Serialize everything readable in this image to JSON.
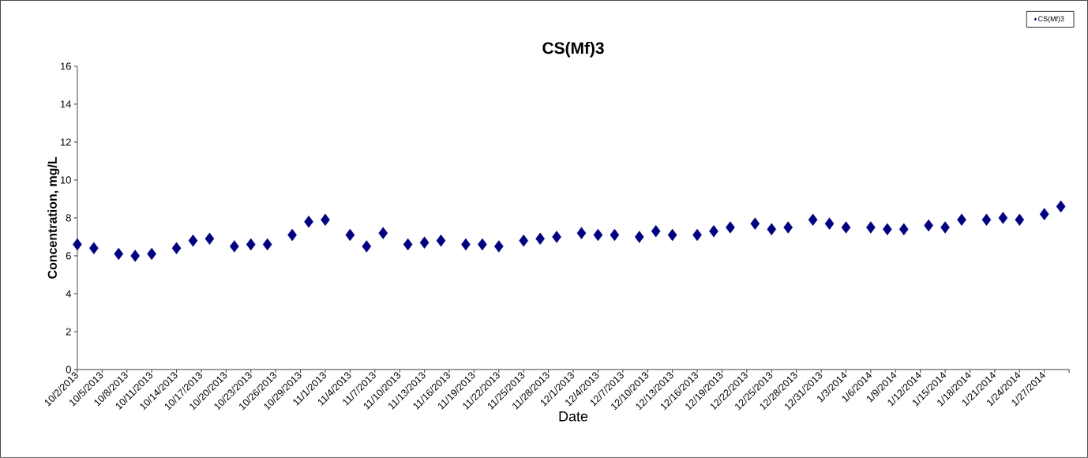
{
  "chart_data": {
    "type": "scatter",
    "title": "CS(Mf)3",
    "xlabel": "Date",
    "ylabel": "Concentration, mg/L",
    "x": [
      "2013-10-02",
      "2013-10-04",
      "2013-10-07",
      "2013-10-09",
      "2013-10-11",
      "2013-10-14",
      "2013-10-16",
      "2013-10-18",
      "2013-10-21",
      "2013-10-23",
      "2013-10-25",
      "2013-10-28",
      "2013-10-30",
      "2013-11-01",
      "2013-11-04",
      "2013-11-06",
      "2013-11-08",
      "2013-11-11",
      "2013-11-13",
      "2013-11-15",
      "2013-11-18",
      "2013-11-20",
      "2013-11-22",
      "2013-11-25",
      "2013-11-27",
      "2013-11-29",
      "2013-12-02",
      "2013-12-04",
      "2013-12-06",
      "2013-12-09",
      "2013-12-11",
      "2013-12-13",
      "2013-12-16",
      "2013-12-18",
      "2013-12-20",
      "2013-12-23",
      "2013-12-25",
      "2013-12-27",
      "2013-12-30",
      "2014-01-01",
      "2014-01-03",
      "2014-01-06",
      "2014-01-08",
      "2014-01-10",
      "2014-01-13",
      "2014-01-15",
      "2014-01-17",
      "2014-01-20",
      "2014-01-22",
      "2014-01-24",
      "2014-01-27",
      "2014-01-29"
    ],
    "series": [
      {
        "name": "CS(Mf)3",
        "color": "#000080",
        "values": [
          6.6,
          6.4,
          6.1,
          6.0,
          6.1,
          6.4,
          6.8,
          6.9,
          6.5,
          6.6,
          6.6,
          7.1,
          7.8,
          7.9,
          7.1,
          6.5,
          7.2,
          6.6,
          6.7,
          6.8,
          6.6,
          6.6,
          6.5,
          6.8,
          6.9,
          7.0,
          7.2,
          7.1,
          7.1,
          7.0,
          7.3,
          7.1,
          7.1,
          7.3,
          7.5,
          7.7,
          7.4,
          7.5,
          7.9,
          7.7,
          7.5,
          7.5,
          7.4,
          7.4,
          7.6,
          7.5,
          7.9,
          7.9,
          8.0,
          7.9,
          8.2,
          8.6
        ]
      }
    ],
    "xlim": [
      "2013-10-02",
      "2014-01-30"
    ],
    "xticks": [
      {
        "value": "2013-10-02",
        "label": "10/2/2013"
      },
      {
        "value": "2013-10-05",
        "label": "10/5/2013"
      },
      {
        "value": "2013-10-08",
        "label": "10/8/2013"
      },
      {
        "value": "2013-10-11",
        "label": "10/11/2013"
      },
      {
        "value": "2013-10-14",
        "label": "10/14/2013"
      },
      {
        "value": "2013-10-17",
        "label": "10/17/2013"
      },
      {
        "value": "2013-10-20",
        "label": "10/20/2013"
      },
      {
        "value": "2013-10-23",
        "label": "10/23/2013"
      },
      {
        "value": "2013-10-26",
        "label": "10/26/2013"
      },
      {
        "value": "2013-10-29",
        "label": "10/29/2013"
      },
      {
        "value": "2013-11-01",
        "label": "11/1/2013"
      },
      {
        "value": "2013-11-04",
        "label": "11/4/2013"
      },
      {
        "value": "2013-11-07",
        "label": "11/7/2013"
      },
      {
        "value": "2013-11-10",
        "label": "11/10/2013"
      },
      {
        "value": "2013-11-13",
        "label": "11/13/2013"
      },
      {
        "value": "2013-11-16",
        "label": "11/16/2013"
      },
      {
        "value": "2013-11-19",
        "label": "11/19/2013"
      },
      {
        "value": "2013-11-22",
        "label": "11/22/2013"
      },
      {
        "value": "2013-11-25",
        "label": "11/25/2013"
      },
      {
        "value": "2013-11-28",
        "label": "11/28/2013"
      },
      {
        "value": "2013-12-01",
        "label": "12/1/2013"
      },
      {
        "value": "2013-12-04",
        "label": "12/4/2013"
      },
      {
        "value": "2013-12-07",
        "label": "12/7/2013"
      },
      {
        "value": "2013-12-10",
        "label": "12/10/2013"
      },
      {
        "value": "2013-12-13",
        "label": "12/13/2013"
      },
      {
        "value": "2013-12-16",
        "label": "12/16/2013"
      },
      {
        "value": "2013-12-19",
        "label": "12/19/2013"
      },
      {
        "value": "2013-12-22",
        "label": "12/22/2013"
      },
      {
        "value": "2013-12-25",
        "label": "12/25/2013"
      },
      {
        "value": "2013-12-28",
        "label": "12/28/2013"
      },
      {
        "value": "2013-12-31",
        "label": "12/31/2013"
      },
      {
        "value": "2014-01-03",
        "label": "1/3/2014"
      },
      {
        "value": "2014-01-06",
        "label": "1/6/2014"
      },
      {
        "value": "2014-01-09",
        "label": "1/9/2014"
      },
      {
        "value": "2014-01-12",
        "label": "1/12/2014"
      },
      {
        "value": "2014-01-15",
        "label": "1/15/2014"
      },
      {
        "value": "2014-01-18",
        "label": "1/18/2014"
      },
      {
        "value": "2014-01-21",
        "label": "1/21/2014"
      },
      {
        "value": "2014-01-24",
        "label": "1/24/2014"
      },
      {
        "value": "2014-01-27",
        "label": "1/27/2014"
      },
      {
        "value": "2014-01-30",
        "label": null
      }
    ],
    "ylim": [
      0,
      16
    ],
    "yticks": [
      0,
      2,
      4,
      6,
      8,
      10,
      12,
      14,
      16
    ],
    "marker": "diamond",
    "legend": "top right",
    "grid": false
  }
}
